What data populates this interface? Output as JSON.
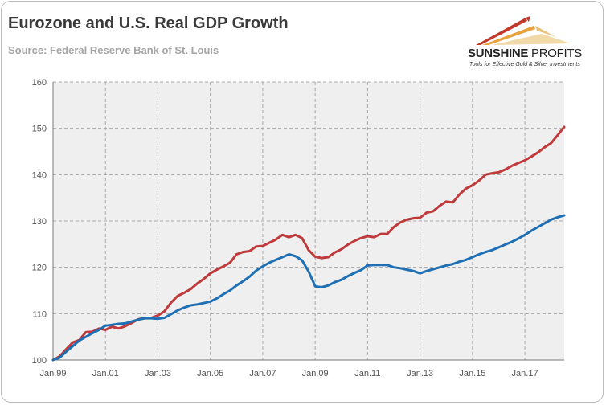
{
  "header": {
    "title": "Eurozone and U.S. Real GDP Growth",
    "subtitle": "Source: Federal Reserve Bank of St. Louis"
  },
  "logo": {
    "brand_bold": "SUNSHINE",
    "brand_light": " PROFITS",
    "tagline": "Tools for Effective Gold & Silver Investments",
    "colors": [
      "#c0392b",
      "#e8a33d"
    ]
  },
  "colors": {
    "us": "#c0393b",
    "eurozone": "#1f6fb5",
    "plot_bg": "#efefef",
    "grid": "#a8a8a8"
  },
  "chart_data": {
    "type": "line",
    "title": "Eurozone and U.S. Real GDP Growth",
    "xlabel": "",
    "ylabel": "",
    "ylim": [
      100,
      160
    ],
    "yticks": [
      100,
      110,
      120,
      130,
      140,
      150,
      160
    ],
    "xlim": [
      1999.0,
      2018.5
    ],
    "xticks": [
      {
        "x": 1999,
        "label": "Jan.99"
      },
      {
        "x": 2001,
        "label": "Jan.01"
      },
      {
        "x": 2003,
        "label": "Jan.03"
      },
      {
        "x": 2005,
        "label": "Jan.05"
      },
      {
        "x": 2007,
        "label": "Jan.07"
      },
      {
        "x": 2009,
        "label": "Jan.09"
      },
      {
        "x": 2011,
        "label": "Jan.11"
      },
      {
        "x": 2013,
        "label": "Jan.13"
      },
      {
        "x": 2015,
        "label": "Jan.15"
      },
      {
        "x": 2017,
        "label": "Jan.17"
      }
    ],
    "grid": true,
    "legend": "none",
    "series": [
      {
        "key": "us",
        "x": [
          1999.0,
          1999.25,
          1999.5,
          1999.75,
          2000.0,
          2000.25,
          2000.5,
          2000.75,
          2001.0,
          2001.25,
          2001.5,
          2001.75,
          2002.0,
          2002.25,
          2002.5,
          2002.75,
          2003.0,
          2003.25,
          2003.5,
          2003.75,
          2004.0,
          2004.25,
          2004.5,
          2004.75,
          2005.0,
          2005.25,
          2005.5,
          2005.75,
          2006.0,
          2006.25,
          2006.5,
          2006.75,
          2007.0,
          2007.25,
          2007.5,
          2007.75,
          2008.0,
          2008.25,
          2008.5,
          2008.75,
          2009.0,
          2009.25,
          2009.5,
          2009.75,
          2010.0,
          2010.25,
          2010.5,
          2010.75,
          2011.0,
          2011.25,
          2011.5,
          2011.75,
          2012.0,
          2012.25,
          2012.5,
          2012.75,
          2013.0,
          2013.25,
          2013.5,
          2013.75,
          2014.0,
          2014.25,
          2014.5,
          2014.75,
          2015.0,
          2015.25,
          2015.5,
          2015.75,
          2016.0,
          2016.25,
          2016.5,
          2016.75,
          2017.0,
          2017.25,
          2017.5,
          2017.75,
          2018.0,
          2018.25,
          2018.5
        ],
        "values": [
          100,
          100.8,
          102.3,
          103.8,
          104.3,
          106.0,
          106.1,
          106.8,
          106.5,
          107.2,
          106.8,
          107.3,
          108.0,
          108.8,
          109.1,
          109.1,
          109.6,
          110.5,
          112.4,
          113.8,
          114.5,
          115.3,
          116.5,
          117.5,
          118.7,
          119.5,
          120.2,
          121.0,
          122.8,
          123.3,
          123.5,
          124.5,
          124.6,
          125.3,
          126.0,
          127.0,
          126.5,
          127.0,
          126.3,
          123.7,
          122.3,
          122.0,
          122.2,
          123.2,
          123.9,
          124.9,
          125.7,
          126.3,
          126.7,
          126.5,
          127.2,
          127.2,
          128.7,
          129.7,
          130.3,
          130.6,
          130.7,
          131.8,
          132.1,
          133.3,
          134.2,
          134.0,
          135.7,
          137.0,
          137.7,
          138.7,
          140.0,
          140.3,
          140.5,
          141.1,
          141.9,
          142.5,
          143.1,
          143.9,
          144.8,
          145.9,
          146.8,
          148.5,
          150.3
        ]
      },
      {
        "key": "eurozone",
        "x": [
          1999.0,
          1999.25,
          1999.5,
          1999.75,
          2000.0,
          2000.25,
          2000.5,
          2000.75,
          2001.0,
          2001.25,
          2001.5,
          2001.75,
          2002.0,
          2002.25,
          2002.5,
          2002.75,
          2003.0,
          2003.25,
          2003.5,
          2003.75,
          2004.0,
          2004.25,
          2004.5,
          2004.75,
          2005.0,
          2005.25,
          2005.5,
          2005.75,
          2006.0,
          2006.25,
          2006.5,
          2006.75,
          2007.0,
          2007.25,
          2007.5,
          2007.75,
          2008.0,
          2008.25,
          2008.5,
          2008.75,
          2009.0,
          2009.25,
          2009.5,
          2009.75,
          2010.0,
          2010.25,
          2010.5,
          2010.75,
          2011.0,
          2011.25,
          2011.5,
          2011.75,
          2012.0,
          2012.25,
          2012.5,
          2012.75,
          2013.0,
          2013.25,
          2013.5,
          2013.75,
          2014.0,
          2014.25,
          2014.5,
          2014.75,
          2015.0,
          2015.25,
          2015.5,
          2015.75,
          2016.0,
          2016.25,
          2016.5,
          2016.75,
          2017.0,
          2017.25,
          2017.5,
          2017.75,
          2018.0,
          2018.25,
          2018.5
        ],
        "values": [
          100,
          100.5,
          101.8,
          103.0,
          104.2,
          105.0,
          105.8,
          106.5,
          107.4,
          107.6,
          107.8,
          107.9,
          108.3,
          108.7,
          109.0,
          109.0,
          108.9,
          109.1,
          109.9,
          110.7,
          111.3,
          111.8,
          112.0,
          112.3,
          112.6,
          113.3,
          114.2,
          115.0,
          116.1,
          117.0,
          118.0,
          119.3,
          120.2,
          121.0,
          121.6,
          122.2,
          122.8,
          122.4,
          121.5,
          119.1,
          115.9,
          115.7,
          116.1,
          116.8,
          117.3,
          118.1,
          118.8,
          119.4,
          120.4,
          120.5,
          120.5,
          120.5,
          120.0,
          119.8,
          119.5,
          119.2,
          118.7,
          119.2,
          119.6,
          120.0,
          120.4,
          120.7,
          121.2,
          121.6,
          122.2,
          122.8,
          123.3,
          123.7,
          124.3,
          124.9,
          125.5,
          126.2,
          127.0,
          127.9,
          128.7,
          129.5,
          130.3,
          130.8,
          131.2
        ]
      }
    ]
  }
}
